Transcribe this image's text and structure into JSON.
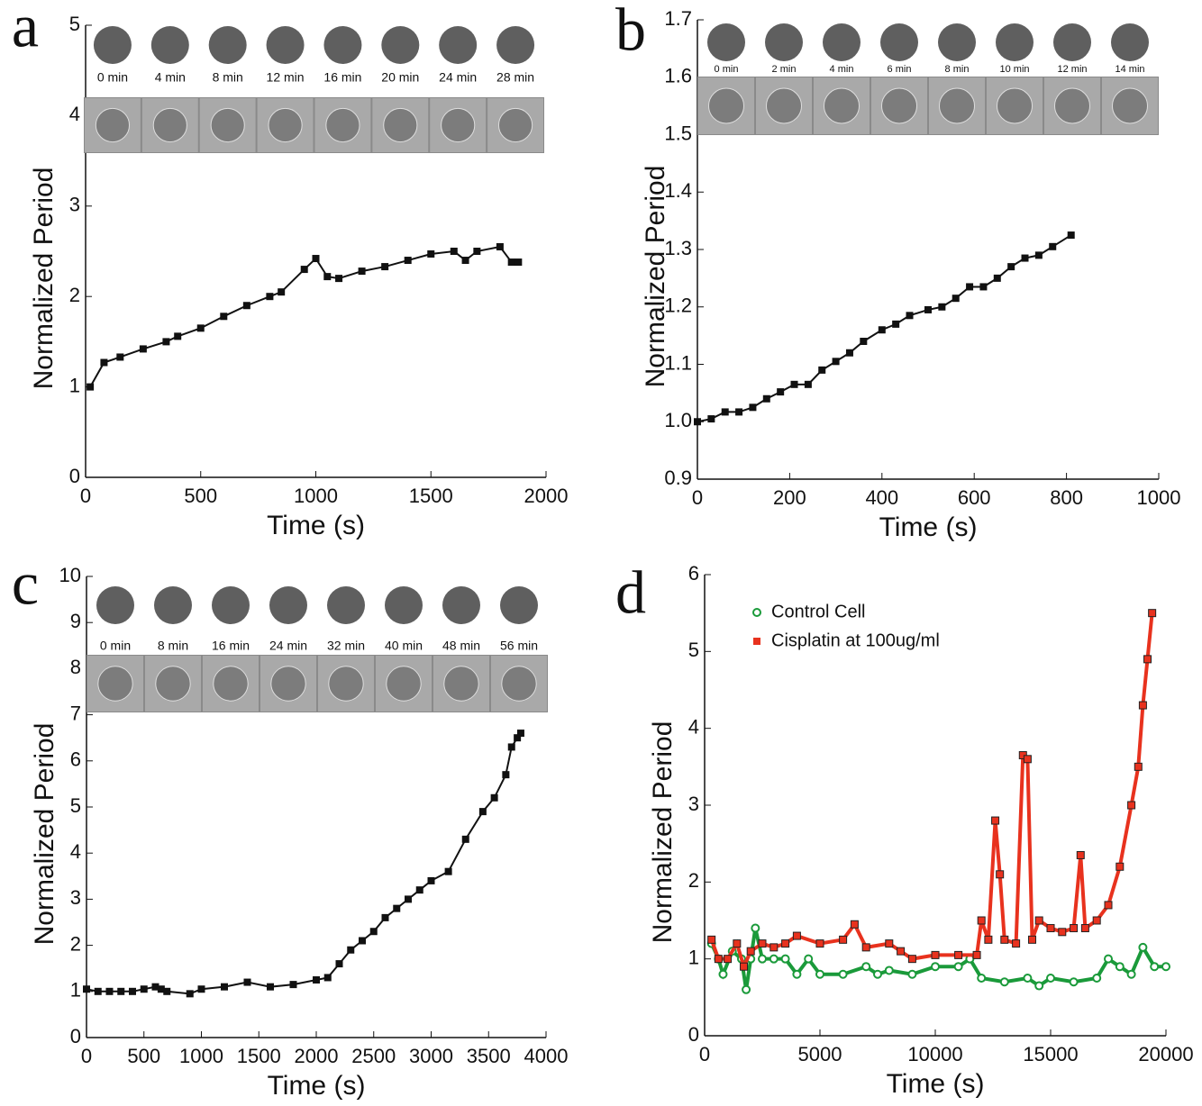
{
  "chart_data": [
    {
      "type": "line",
      "label": "a",
      "x_label": "Time (s)",
      "y_label": "Normalized Period",
      "time_labels": [
        "0 min",
        "4 min",
        "8 min",
        "12 min",
        "16 min",
        "20 min",
        "24 min",
        "28 min"
      ],
      "xlim": [
        0,
        2000
      ],
      "xticks": [
        0,
        500,
        1000,
        1500,
        2000
      ],
      "ylim": [
        0,
        5
      ],
      "yticks": [
        0,
        1,
        2,
        3,
        4,
        5
      ],
      "series": [
        {
          "color": "#111111",
          "x": [
            20,
            80,
            150,
            250,
            350,
            400,
            500,
            600,
            700,
            800,
            850,
            950,
            1000,
            1050,
            1100,
            1200,
            1300,
            1400,
            1500,
            1600,
            1650,
            1700,
            1800,
            1850,
            1880
          ],
          "values": [
            1.0,
            1.27,
            1.33,
            1.42,
            1.5,
            1.56,
            1.65,
            1.78,
            1.9,
            2.0,
            2.05,
            2.3,
            2.42,
            2.22,
            2.2,
            2.28,
            2.33,
            2.4,
            2.47,
            2.5,
            2.4,
            2.5,
            2.55,
            2.38,
            2.38
          ]
        }
      ]
    },
    {
      "type": "line",
      "label": "b",
      "x_label": "Time (s)",
      "y_label": "Normalized Period",
      "time_labels": [
        "0 min",
        "2 min",
        "4 min",
        "6 min",
        "8 min",
        "10 min",
        "12 min",
        "14 min"
      ],
      "xlim": [
        0,
        1000
      ],
      "xticks": [
        0,
        200,
        400,
        600,
        800,
        1000
      ],
      "ylim": [
        0.9,
        1.7
      ],
      "yticks": [
        0.9,
        {
          "value": 1,
          "label": "1.0"
        },
        1.1,
        1.2,
        1.3,
        1.4,
        1.5,
        1.6,
        1.7
      ],
      "series": [
        {
          "color": "#111111",
          "x": [
            0,
            30,
            60,
            90,
            120,
            150,
            180,
            210,
            240,
            270,
            300,
            330,
            360,
            400,
            430,
            460,
            500,
            530,
            560,
            590,
            620,
            650,
            680,
            710,
            740,
            770,
            810
          ],
          "values": [
            1.0,
            1.005,
            1.017,
            1.017,
            1.025,
            1.04,
            1.052,
            1.065,
            1.065,
            1.09,
            1.105,
            1.12,
            1.14,
            1.16,
            1.17,
            1.185,
            1.195,
            1.2,
            1.215,
            1.235,
            1.235,
            1.25,
            1.27,
            1.285,
            1.29,
            1.305,
            1.325
          ]
        }
      ]
    },
    {
      "type": "line",
      "label": "c",
      "x_label": "Time (s)",
      "y_label": "Normalized Period",
      "time_labels": [
        "0 min",
        "8 min",
        "16 min",
        "24 min",
        "32 min",
        "40 min",
        "48 min",
        "56 min"
      ],
      "xlim": [
        0,
        4000
      ],
      "xticks": [
        0,
        500,
        1000,
        1500,
        2000,
        2500,
        3000,
        3500,
        4000
      ],
      "ylim": [
        0,
        10
      ],
      "yticks": [
        0,
        1,
        2,
        3,
        4,
        5,
        6,
        7,
        8,
        9,
        10
      ],
      "series": [
        {
          "color": "#111111",
          "x": [
            0,
            100,
            200,
            300,
            400,
            500,
            600,
            650,
            700,
            900,
            1000,
            1200,
            1400,
            1600,
            1800,
            2000,
            2100,
            2200,
            2300,
            2400,
            2500,
            2600,
            2700,
            2800,
            2900,
            3000,
            3150,
            3300,
            3450,
            3550,
            3650,
            3700,
            3750,
            3780
          ],
          "values": [
            1.05,
            1.0,
            1.0,
            1.0,
            1.0,
            1.05,
            1.1,
            1.05,
            1.0,
            0.95,
            1.05,
            1.1,
            1.2,
            1.1,
            1.15,
            1.25,
            1.3,
            1.6,
            1.9,
            2.1,
            2.3,
            2.6,
            2.8,
            3.0,
            3.2,
            3.4,
            3.6,
            4.3,
            4.9,
            5.2,
            5.7,
            6.3,
            6.5,
            6.6
          ]
        }
      ]
    },
    {
      "type": "line",
      "label": "d",
      "x_label": "Time (s)",
      "y_label": "Normalized Period",
      "xlim": [
        0,
        20000
      ],
      "xticks": [
        0,
        5000,
        10000,
        15000,
        20000
      ],
      "ylim": [
        0,
        6
      ],
      "yticks": [
        0,
        1,
        2,
        3,
        4,
        5,
        6
      ],
      "legend": "upper left",
      "series": [
        {
          "name": "Control Cell",
          "color": "#1a9a3a",
          "marker": "circle",
          "x": [
            300,
            600,
            800,
            1200,
            1600,
            1800,
            2000,
            2200,
            2500,
            3000,
            3500,
            4000,
            4500,
            5000,
            6000,
            7000,
            7500,
            8000,
            9000,
            10000,
            11000,
            11500,
            12000,
            13000,
            14000,
            14500,
            15000,
            16000,
            17000,
            17500,
            18000,
            18500,
            19000,
            19500,
            20000
          ],
          "values": [
            1.2,
            1.0,
            0.8,
            1.1,
            1.0,
            0.6,
            1.0,
            1.4,
            1.0,
            1.0,
            1.0,
            0.8,
            1.0,
            0.8,
            0.8,
            0.9,
            0.8,
            0.85,
            0.8,
            0.9,
            0.9,
            1.0,
            0.75,
            0.7,
            0.75,
            0.65,
            0.75,
            0.7,
            0.75,
            1.0,
            0.9,
            0.8,
            1.15,
            0.9,
            0.9
          ]
        },
        {
          "name": "Cisplatin at 100ug/ml",
          "color": "#e8321e",
          "marker": "square",
          "x": [
            300,
            600,
            1000,
            1400,
            1700,
            2000,
            2500,
            3000,
            3500,
            4000,
            5000,
            6000,
            6500,
            7000,
            8000,
            8500,
            9000,
            10000,
            11000,
            11800,
            12000,
            12300,
            12600,
            12800,
            13000,
            13500,
            13800,
            14000,
            14200,
            14500,
            15000,
            15500,
            16000,
            16300,
            16500,
            17000,
            17500,
            18000,
            18500,
            18800,
            19000,
            19200,
            19400
          ],
          "values": [
            1.25,
            1.0,
            1.0,
            1.2,
            0.9,
            1.1,
            1.2,
            1.15,
            1.2,
            1.3,
            1.2,
            1.25,
            1.45,
            1.15,
            1.2,
            1.1,
            1.0,
            1.05,
            1.05,
            1.05,
            1.5,
            1.25,
            2.8,
            2.1,
            1.25,
            1.2,
            3.65,
            3.6,
            1.25,
            1.5,
            1.4,
            1.35,
            1.4,
            2.35,
            1.4,
            1.5,
            1.7,
            2.2,
            3.0,
            3.5,
            4.3,
            4.9,
            5.5
          ]
        }
      ]
    }
  ]
}
